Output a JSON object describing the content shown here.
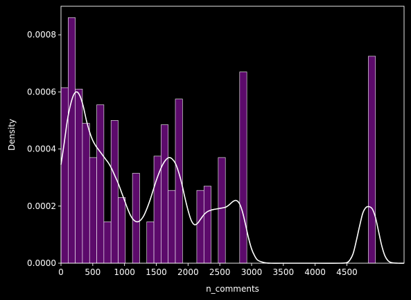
{
  "chart_data": {
    "type": "bar",
    "subtype": "histogram-with-kde",
    "xlabel": "n_comments",
    "ylabel": "Density",
    "xlim": [
      0,
      5400
    ],
    "ylim": [
      0,
      0.0009
    ],
    "xticks": [
      0,
      500,
      1000,
      1500,
      2000,
      2500,
      3000,
      3500,
      4000,
      4500
    ],
    "xtick_labels": [
      "0",
      "500",
      "1000",
      "1500",
      "2000",
      "2500",
      "3000",
      "3500",
      "4000",
      "4500"
    ],
    "yticks": [
      0,
      0.0002,
      0.0004,
      0.0006,
      0.0008
    ],
    "ytick_labels": [
      "0.0000",
      "0.0002",
      "0.0004",
      "0.0006",
      "0.0008"
    ],
    "grid": false,
    "colors": {
      "background": "#000000",
      "bar_fill": "#5c0a6b",
      "bar_edge": "#ffffff",
      "kde_line": "#ffffff",
      "axis": "#ffffff"
    },
    "bin_width": 112.5,
    "bins": [
      {
        "x0": 0,
        "x1": 112.5,
        "density": 0.000615
      },
      {
        "x0": 112.5,
        "x1": 225,
        "density": 0.00086
      },
      {
        "x0": 225,
        "x1": 337.5,
        "density": 0.00061
      },
      {
        "x0": 337.5,
        "x1": 450,
        "density": 0.00049
      },
      {
        "x0": 450,
        "x1": 562.5,
        "density": 0.00037
      },
      {
        "x0": 562.5,
        "x1": 675,
        "density": 0.000555
      },
      {
        "x0": 675,
        "x1": 787.5,
        "density": 0.000145
      },
      {
        "x0": 787.5,
        "x1": 900,
        "density": 0.0005
      },
      {
        "x0": 900,
        "x1": 1012.5,
        "density": 0.00023
      },
      {
        "x0": 1012.5,
        "x1": 1125,
        "density": 0.0
      },
      {
        "x0": 1125,
        "x1": 1237.5,
        "density": 0.000315
      },
      {
        "x0": 1237.5,
        "x1": 1350,
        "density": 0.0
      },
      {
        "x0": 1350,
        "x1": 1462.5,
        "density": 0.000145
      },
      {
        "x0": 1462.5,
        "x1": 1575,
        "density": 0.000375
      },
      {
        "x0": 1575,
        "x1": 1687.5,
        "density": 0.000485
      },
      {
        "x0": 1687.5,
        "x1": 1800,
        "density": 0.000255
      },
      {
        "x0": 1800,
        "x1": 1912.5,
        "density": 0.000575
      },
      {
        "x0": 1912.5,
        "x1": 2025,
        "density": 0.0
      },
      {
        "x0": 2025,
        "x1": 2137.5,
        "density": 0.0
      },
      {
        "x0": 2137.5,
        "x1": 2250,
        "density": 0.000255
      },
      {
        "x0": 2250,
        "x1": 2362.5,
        "density": 0.00027
      },
      {
        "x0": 2362.5,
        "x1": 2475,
        "density": 0.0
      },
      {
        "x0": 2475,
        "x1": 2587.5,
        "density": 0.00037
      },
      {
        "x0": 2587.5,
        "x1": 2700,
        "density": 0.0
      },
      {
        "x0": 2700,
        "x1": 2812.5,
        "density": 0.0
      },
      {
        "x0": 2812.5,
        "x1": 2925,
        "density": 0.00067
      },
      {
        "x0": 4837.5,
        "x1": 4950,
        "density": 0.000725
      }
    ],
    "kde": {
      "x": [
        0,
        50,
        100,
        150,
        200,
        250,
        300,
        350,
        400,
        450,
        500,
        550,
        600,
        650,
        700,
        750,
        800,
        850,
        900,
        950,
        1000,
        1050,
        1100,
        1150,
        1200,
        1250,
        1300,
        1350,
        1400,
        1450,
        1500,
        1550,
        1600,
        1650,
        1700,
        1750,
        1800,
        1850,
        1900,
        1950,
        2000,
        2050,
        2100,
        2150,
        2200,
        2250,
        2300,
        2350,
        2400,
        2450,
        2500,
        2550,
        2600,
        2650,
        2700,
        2750,
        2800,
        2850,
        2900,
        2950,
        3000,
        3050,
        3100,
        3200,
        3300,
        3500,
        4000,
        4400,
        4500,
        4550,
        4600,
        4650,
        4700,
        4750,
        4800,
        4850,
        4900,
        4950,
        5000,
        5050,
        5100,
        5150,
        5200,
        5300,
        5400
      ],
      "y": [
        0.000345,
        0.00042,
        0.0005,
        0.000555,
        0.00059,
        0.0006,
        0.000585,
        0.00055,
        0.0005,
        0.00046,
        0.00043,
        0.00041,
        0.000395,
        0.00038,
        0.000365,
        0.00035,
        0.00033,
        0.000305,
        0.00028,
        0.00025,
        0.00022,
        0.00019,
        0.000165,
        0.00015,
        0.000145,
        0.00015,
        0.000165,
        0.00019,
        0.00022,
        0.000255,
        0.00029,
        0.00032,
        0.000345,
        0.000362,
        0.00037,
        0.000365,
        0.00035,
        0.00032,
        0.00028,
        0.00023,
        0.000185,
        0.00015,
        0.000135,
        0.00014,
        0.000155,
        0.00017,
        0.00018,
        0.000185,
        0.000188,
        0.00019,
        0.000192,
        0.000194,
        0.000197,
        0.000205,
        0.000215,
        0.00022,
        0.000212,
        0.000185,
        0.00014,
        9e-05,
        5e-05,
        2.5e-05,
        1e-05,
        2e-06,
        0.0,
        0.0,
        0.0,
        0.0,
        2e-06,
        1.2e-05,
        3.5e-05,
        8e-05,
        0.00013,
        0.000175,
        0.000195,
        0.000198,
        0.00019,
        0.00016,
        0.00011,
        6e-05,
        2.5e-05,
        8e-06,
        2e-06,
        0.0,
        0.0
      ]
    }
  }
}
